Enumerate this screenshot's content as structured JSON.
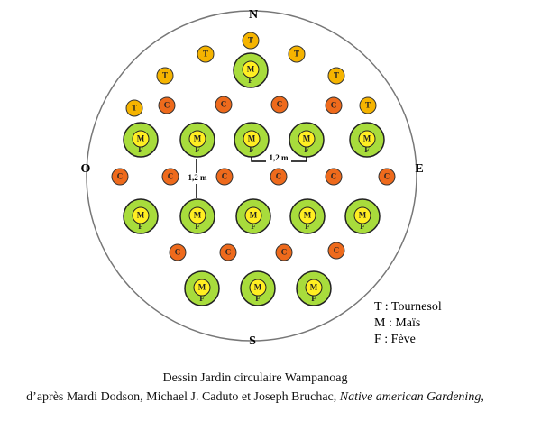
{
  "compass": {
    "north": "N",
    "south": "S",
    "west": "O",
    "east": "E"
  },
  "symbols": {
    "sunflower": "T",
    "corn": "M",
    "bean": "F",
    "squash": "C"
  },
  "measures": {
    "vertical": "1,2 m",
    "horizontal": "1,2 m"
  },
  "legend": [
    "T : Tournesol",
    "M : Maïs",
    "F : Fève"
  ],
  "caption": {
    "title": "Dessin Jardin circulaire Wampanoag",
    "credit_prefix": "d’après Mardi Dodson, Michael J. Caduto et Joseph Bruchac, ",
    "credit_book": "Native american Gardening",
    "credit_suffix": ","
  }
}
